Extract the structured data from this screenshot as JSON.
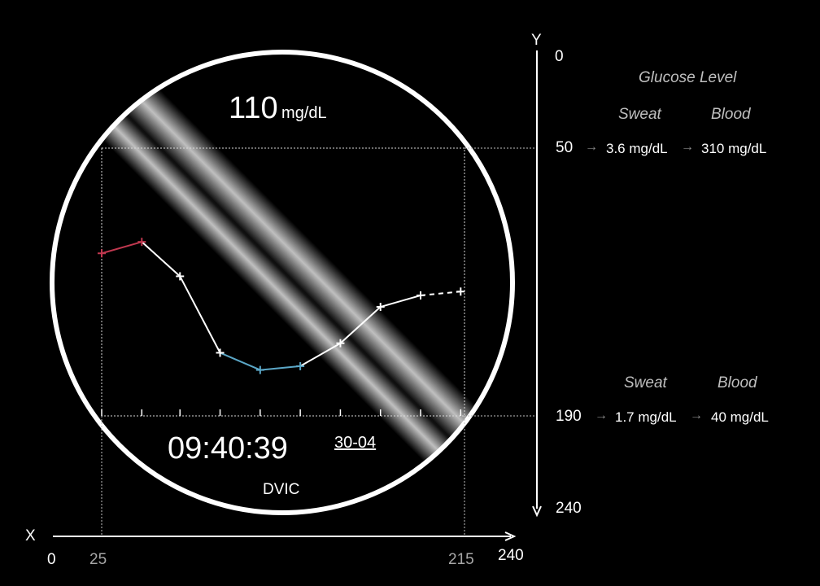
{
  "reading": {
    "value": "110",
    "unit": "mg/dL"
  },
  "clock": {
    "time": "09:40:39",
    "date": "30-04"
  },
  "device": {
    "label": "DVIC"
  },
  "y_axis": {
    "name": "Y",
    "ticks": {
      "top": "0",
      "upper": "50",
      "lower": "190",
      "bottom": "240"
    }
  },
  "x_axis": {
    "name": "X",
    "ticks": {
      "origin": "0",
      "left": "25",
      "right": "215",
      "end": "240"
    }
  },
  "legend": {
    "title": "Glucose Level",
    "upper": {
      "sweat_header": "Sweat",
      "blood_header": "Blood",
      "value_label": "50",
      "sweat": "3.6 mg/dL",
      "blood": "310 mg/dL"
    },
    "lower": {
      "sweat_header": "Sweat",
      "blood_header": "Blood",
      "value_label": "190",
      "sweat": "1.7 mg/dL",
      "blood": "40 mg/dL"
    },
    "arrow_glyph": "→"
  },
  "trend_points": [
    {
      "x": 25,
      "y": 105,
      "status": "high"
    },
    {
      "x": 46,
      "y": 99,
      "status": "high"
    },
    {
      "x": 66,
      "y": 117,
      "status": "normal"
    },
    {
      "x": 87,
      "y": 157,
      "status": "normal"
    },
    {
      "x": 108,
      "y": 166,
      "status": "low"
    },
    {
      "x": 129,
      "y": 164,
      "status": "low"
    },
    {
      "x": 150,
      "y": 152,
      "status": "normal"
    },
    {
      "x": 171,
      "y": 133,
      "status": "normal"
    },
    {
      "x": 192,
      "y": 127,
      "status": "normal"
    },
    {
      "x": 213,
      "y": 125,
      "status": "projected"
    }
  ],
  "colors": {
    "high": "#c0384f",
    "normal": "#ffffff",
    "low": "#5ba7c7",
    "frame": "#ffffff",
    "background": "#000000"
  }
}
